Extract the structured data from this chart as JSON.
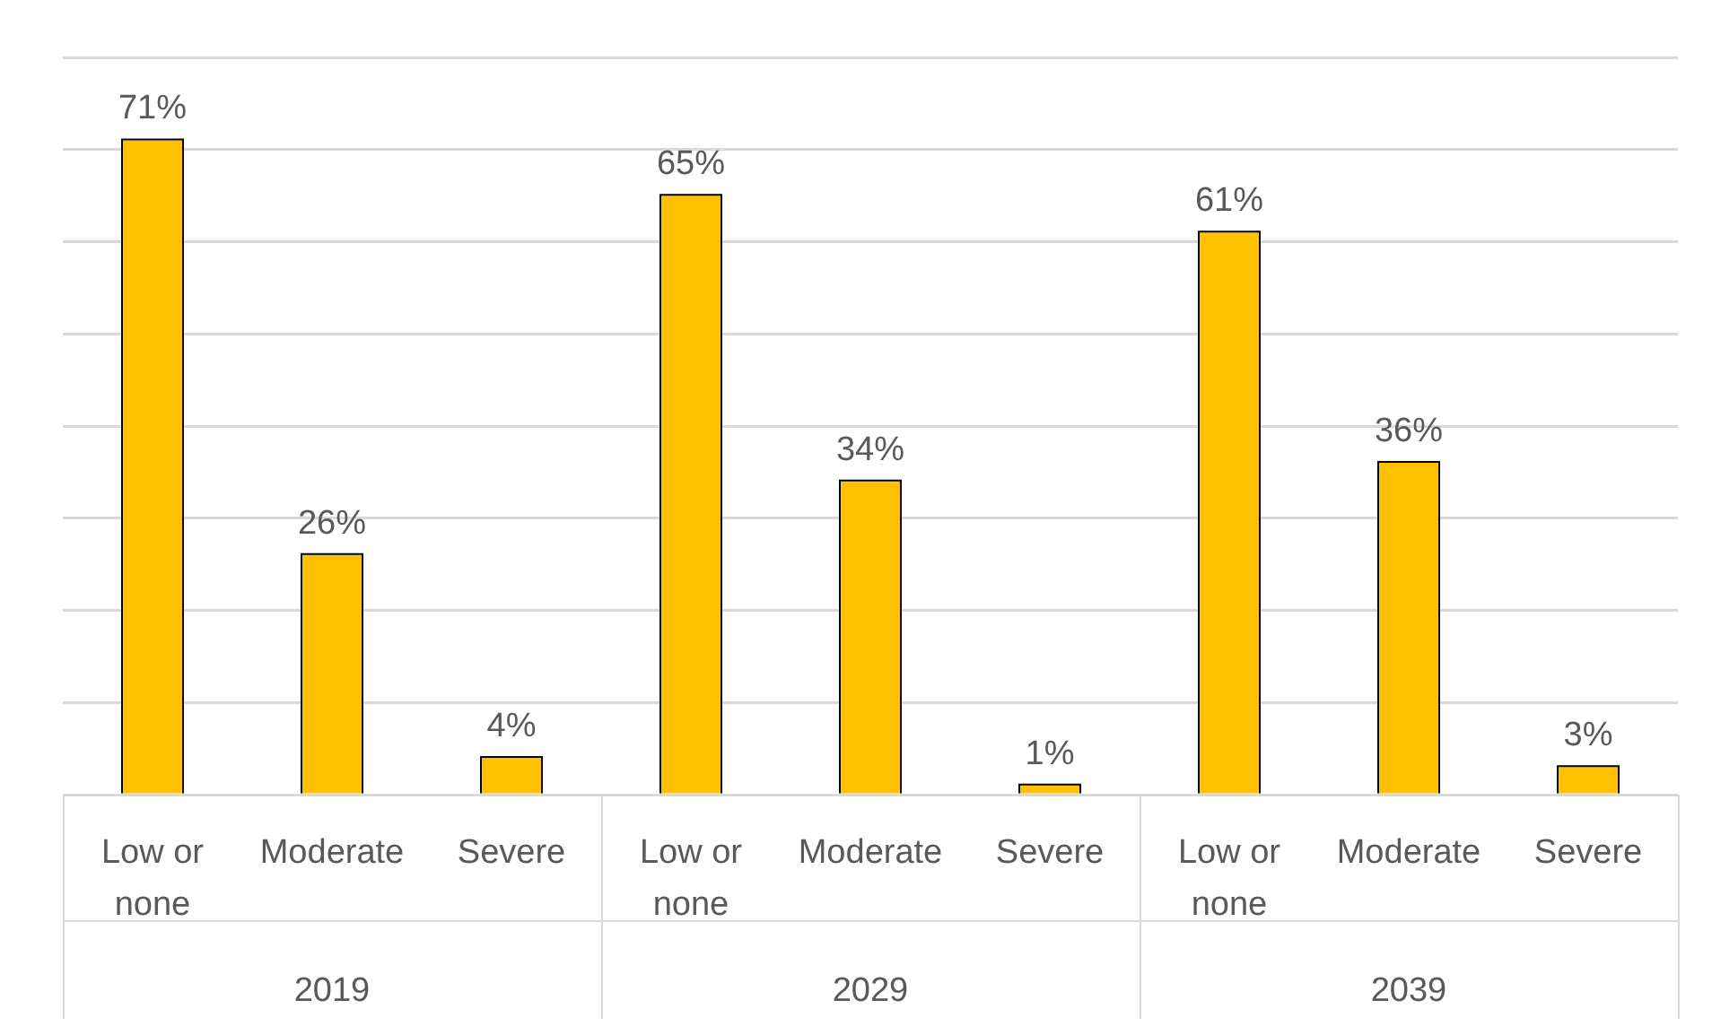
{
  "chart_data": {
    "type": "bar",
    "categories": [
      "Low or none",
      "Moderate",
      "Severe",
      "Low or none",
      "Moderate",
      "Severe",
      "Low or none",
      "Moderate",
      "Severe"
    ],
    "values": [
      71,
      26,
      4,
      65,
      34,
      1,
      61,
      36,
      3
    ],
    "value_labels": [
      "71%",
      "26%",
      "4%",
      "65%",
      "34%",
      "1%",
      "61%",
      "36%",
      "3%"
    ],
    "color": "#ffc000",
    "grid": "y",
    "annotations": [
      "2019",
      "2029",
      "2039"
    ]
  }
}
